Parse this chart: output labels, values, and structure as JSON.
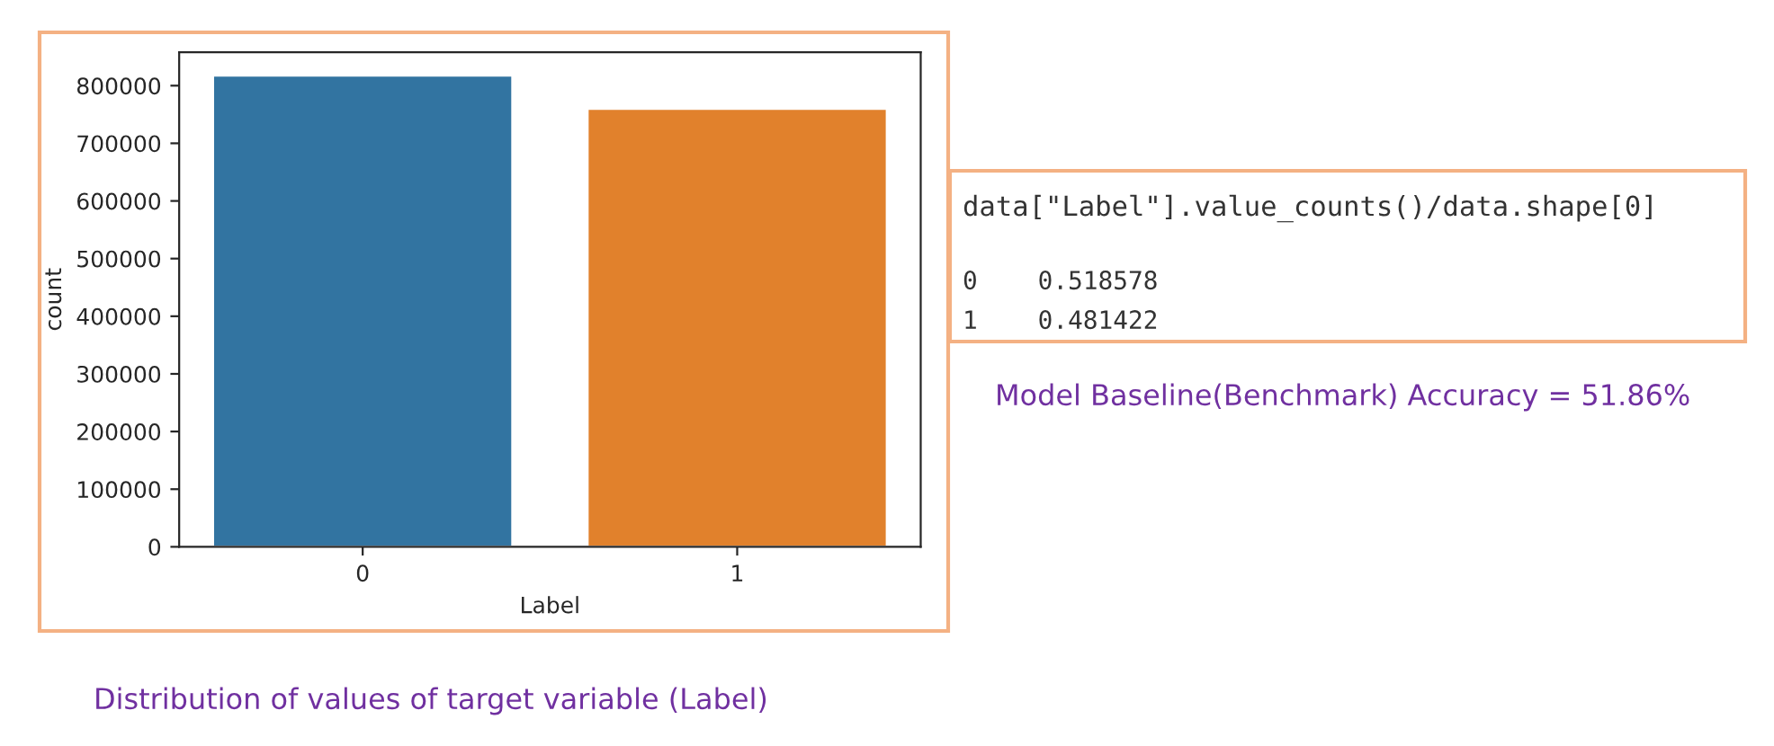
{
  "chart_data": {
    "type": "bar",
    "categories": [
      "0",
      "1"
    ],
    "values": [
      818000,
      760000
    ],
    "colors": [
      "#3274a1",
      "#e1812c"
    ],
    "xlabel": "Label",
    "ylabel": "count",
    "ylim": [
      0,
      858000
    ],
    "yticks": [
      0,
      100000,
      200000,
      300000,
      400000,
      500000,
      600000,
      700000,
      800000
    ],
    "grid": false,
    "legend": false,
    "annotations": [
      "data[\"Label\"].value_counts()/data.shape[0]",
      "0    0.518578",
      "1    0.481422",
      "Model Baseline(Benchmark) Accuracy = 51.86%",
      "Distribution of values of target variable (Label)"
    ]
  }
}
